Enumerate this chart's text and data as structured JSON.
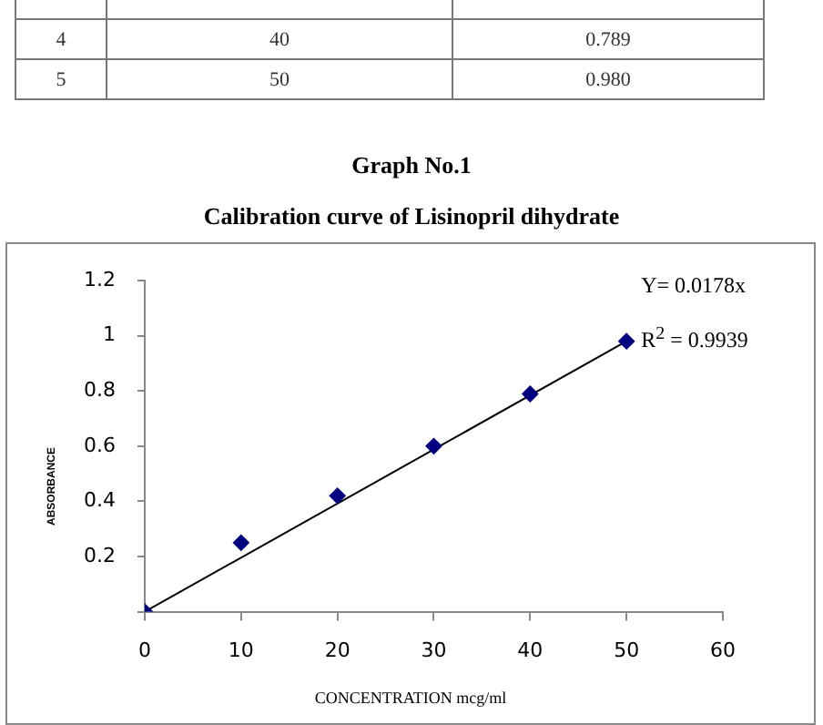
{
  "chart_data": {
    "type": "scatter",
    "title": "Graph No.1",
    "subtitle": "Calibration curve of Lisinopril dihydrate",
    "xlabel": "CONCENTRATION mcg/ml",
    "ylabel": "ABSORBANCE",
    "annotations": [
      "4",
      "40",
      "0.789",
      "5",
      "50",
      "0.980",
      {
        "text": "Y= 0.0178x",
        "x": 50,
        "y": 0.98
      },
      {
        "text": "R$^{2}$ = 0.9939",
        "x": 50,
        "y": 0.98
      }
    ],
    "series": [
      {
        "color": "#000080",
        "marker": "diamond",
        "x": [
          0,
          10,
          20,
          30,
          40,
          50
        ],
        "values": [
          0,
          0.25,
          0.42,
          0.6,
          0.789,
          0.98
        ]
      },
      {
        "type": "line",
        "color": "#000000",
        "marker": "none",
        "line_style": "solid",
        "x": [
          0,
          50
        ],
        "values": [
          0,
          0.98
        ]
      }
    ],
    "xlim": [
      0,
      60
    ],
    "xticks": [
      0,
      10,
      20,
      30,
      40,
      50,
      60
    ],
    "ylim": [
      0,
      1.2
    ],
    "yticks": [
      {
        "value": 0,
        "label": null
      },
      0.2,
      0.4,
      0.6,
      0.8,
      1,
      1.2
    ],
    "grid": false,
    "legend": false
  }
}
